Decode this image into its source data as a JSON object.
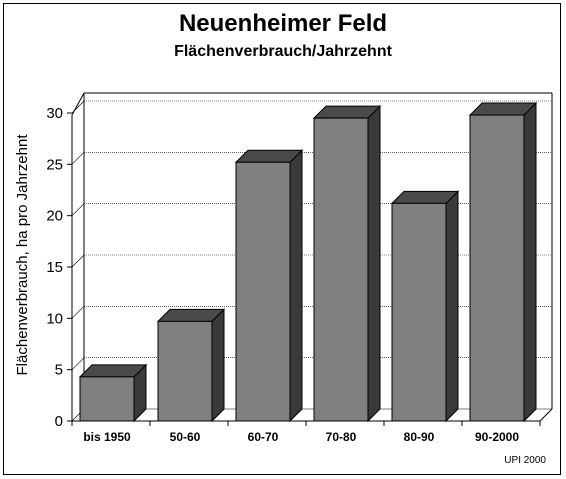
{
  "chart_data": {
    "type": "bar",
    "title": "Neuenheimer Feld",
    "subtitle": "Flächenverbrauch/Jahrzehnt",
    "xlabel": "",
    "ylabel": "Flächenverbrauch, ha pro Jahrzehnt",
    "categories": [
      "bis 1950",
      "50-60",
      "60-70",
      "70-80",
      "80-90",
      "90-2000"
    ],
    "values": [
      4.3,
      9.7,
      25.2,
      29.5,
      21.2,
      29.8
    ],
    "ylim": [
      0,
      30
    ],
    "yticks": [
      "0",
      "5",
      "10",
      "15",
      "20",
      "25",
      "30"
    ],
    "grid": true,
    "legend": "none",
    "style": "3d-bar",
    "colors": {
      "bar_face": "#808080",
      "bar_top": "#4a4a4a",
      "bar_side": "#3a3a3a",
      "grid": "#000000"
    }
  },
  "credit": "UPI 2000"
}
